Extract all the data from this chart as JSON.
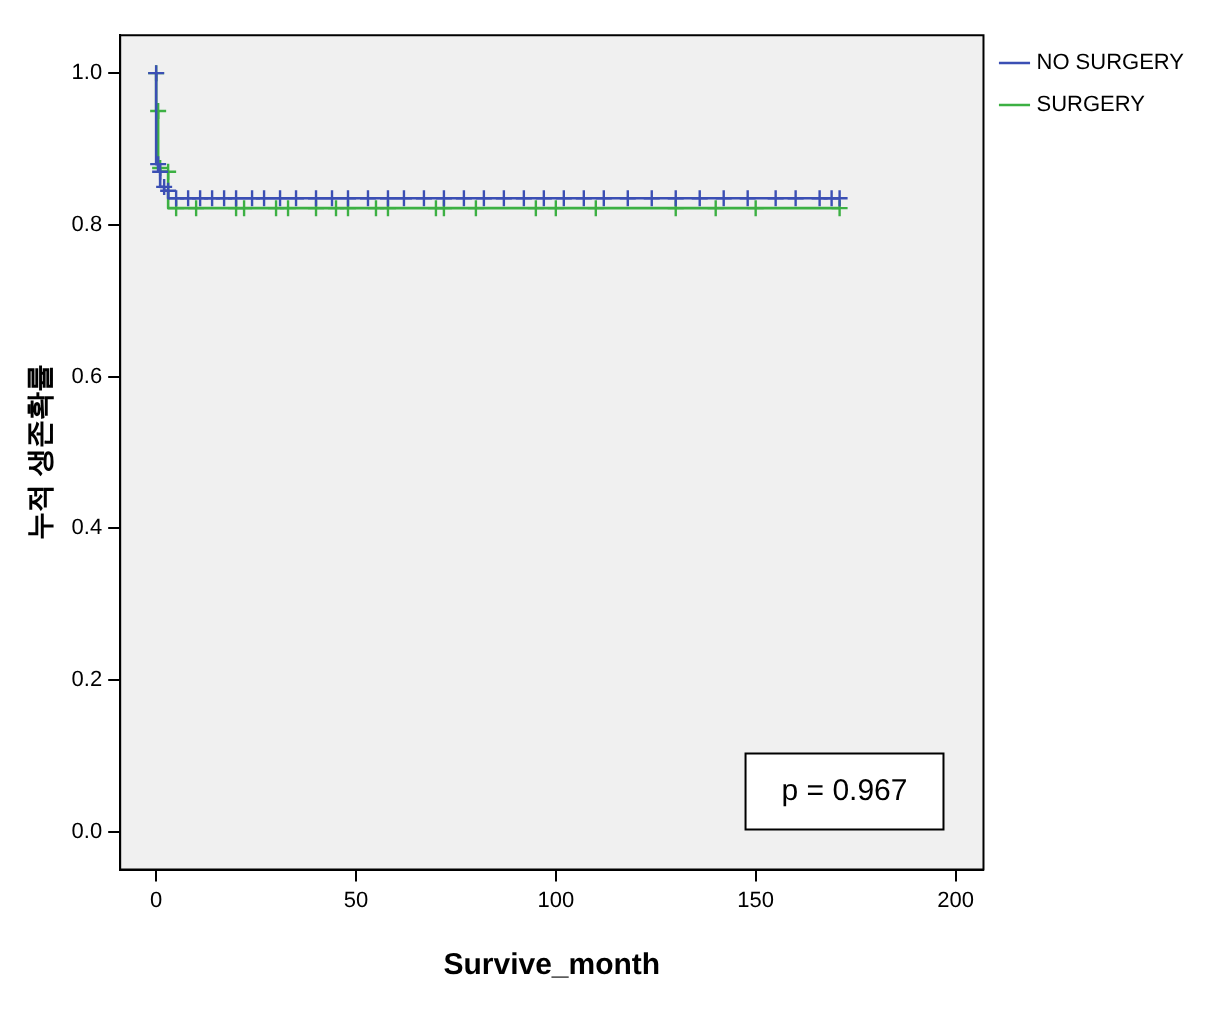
{
  "chart_data": {
    "type": "step",
    "xlabel": "Survive_month",
    "ylabel": "누적 생존확률",
    "annotations": [
      "p = 0.967"
    ],
    "series": [
      {
        "name": "NO SURGERY",
        "color": "#3b4fb4",
        "x": [
          0,
          0.5,
          1,
          2,
          3,
          5,
          8,
          11,
          14,
          17,
          20,
          24,
          27,
          31,
          35,
          40,
          44,
          48,
          53,
          58,
          62,
          67,
          72,
          77,
          82,
          87,
          92,
          97,
          102,
          107,
          112,
          118,
          124,
          130,
          136,
          142,
          148,
          155,
          160,
          166,
          169,
          171
        ],
        "values": [
          1.0,
          0.88,
          0.87,
          0.85,
          0.845,
          0.835,
          0.835,
          0.835,
          0.835,
          0.835,
          0.835,
          0.835,
          0.835,
          0.835,
          0.835,
          0.835,
          0.835,
          0.835,
          0.835,
          0.835,
          0.835,
          0.835,
          0.835,
          0.835,
          0.835,
          0.835,
          0.835,
          0.835,
          0.835,
          0.835,
          0.835,
          0.835,
          0.835,
          0.835,
          0.835,
          0.835,
          0.835,
          0.835,
          0.835,
          0.835,
          0.835,
          0.835
        ]
      },
      {
        "name": "SURGERY",
        "color": "#3cb043",
        "x": [
          0,
          0.5,
          1,
          3,
          5,
          10,
          20,
          22,
          30,
          33,
          40,
          45,
          48,
          55,
          58,
          70,
          72,
          80,
          95,
          100,
          110,
          130,
          140,
          150,
          171
        ],
        "values": [
          1.0,
          0.95,
          0.875,
          0.87,
          0.822,
          0.822,
          0.822,
          0.822,
          0.822,
          0.822,
          0.822,
          0.822,
          0.822,
          0.822,
          0.822,
          0.822,
          0.822,
          0.822,
          0.822,
          0.822,
          0.822,
          0.822,
          0.822,
          0.822,
          0.822
        ]
      }
    ],
    "xlim": [
      -9,
      207
    ],
    "xticks": [
      0,
      50,
      100,
      150,
      200
    ],
    "ylim": [
      -0.05,
      1.05
    ],
    "yticks": [
      {
        "value": 0,
        "label": "0.0"
      },
      {
        "value": 0.2,
        "label": "0.2"
      },
      {
        "value": 0.4,
        "label": "0.4"
      },
      {
        "value": 0.6,
        "label": "0.6"
      },
      {
        "value": 0.8,
        "label": "0.8"
      },
      {
        "value": 1,
        "label": "1.0"
      }
    ],
    "grid": false,
    "legend": "top right",
    "marker": "cross",
    "line_style": "solid"
  }
}
